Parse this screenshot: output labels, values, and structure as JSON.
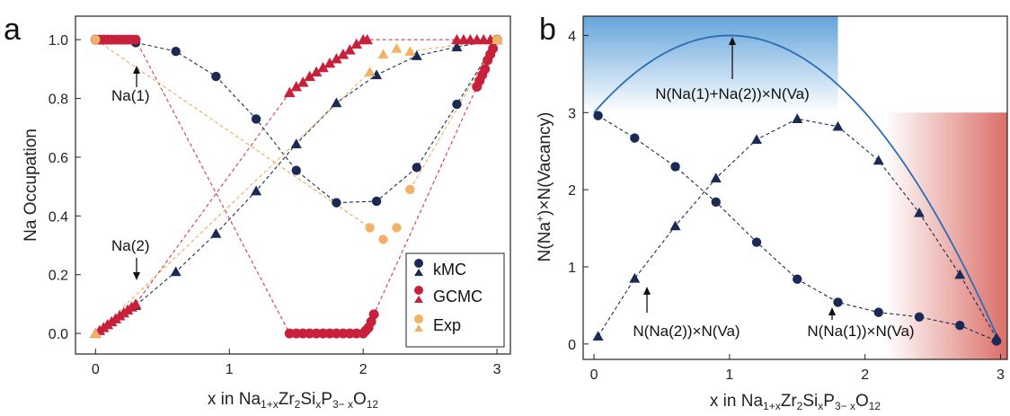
{
  "colors": {
    "kmc": "#1b2a55",
    "gcmc": "#c8203a",
    "exp": "#f2b266",
    "blue_line": "#2a6db5",
    "blue_fill": "#5b9fd9",
    "red_fill": "#d9675f",
    "kmc_dash": "#1b2a55",
    "gcmc_dash": "#d23a4e",
    "exp_dash": "#f0a95a"
  },
  "chart_data": [
    {
      "type": "scatter",
      "panel": "a",
      "xlabel": "x in Na1+xZr2SixP3−xO12",
      "ylabel": "Na Occupation",
      "xlim": [
        -0.15,
        3.1
      ],
      "ylim": [
        -0.07,
        1.08
      ],
      "xticks": [
        0,
        1,
        2,
        3
      ],
      "yticks": [
        0.0,
        0.2,
        0.4,
        0.6,
        0.8,
        1.0
      ],
      "ytick_labels": [
        "0.0",
        "0.2",
        "0.4",
        "0.6",
        "0.8",
        "1.0"
      ],
      "legend": {
        "placement": "bottom-right",
        "entries": [
          "kMC",
          "GCMC",
          "Exp"
        ]
      },
      "annotations": [
        {
          "text": "Na(1)",
          "x": 0.3,
          "y": 0.99
        },
        {
          "text": "Na(2)",
          "x": 0.3,
          "y": 0.11
        }
      ],
      "series": [
        {
          "name": "kMC",
          "site": "Na(1)",
          "marker": "circle",
          "x": [
            0.3,
            0.6,
            0.9,
            1.2,
            1.5,
            1.8,
            2.1,
            2.4,
            2.7,
            3.0
          ],
          "y": [
            0.99,
            0.96,
            0.875,
            0.73,
            0.555,
            0.445,
            0.45,
            0.565,
            0.78,
            1.0
          ]
        },
        {
          "name": "kMC",
          "site": "Na(2)",
          "marker": "triangle",
          "x": [
            0.3,
            0.6,
            0.9,
            1.2,
            1.5,
            1.8,
            2.1,
            2.4,
            2.7,
            3.0
          ],
          "y": [
            0.095,
            0.21,
            0.34,
            0.485,
            0.645,
            0.785,
            0.88,
            0.945,
            0.975,
            1.0
          ]
        },
        {
          "name": "GCMC",
          "site": "Na(1)",
          "marker": "circle",
          "x": [
            0.0,
            0.03,
            0.06,
            0.09,
            0.12,
            0.15,
            0.18,
            0.21,
            0.24,
            0.27,
            0.3,
            1.45,
            1.5,
            1.55,
            1.6,
            1.65,
            1.7,
            1.75,
            1.8,
            1.85,
            1.9,
            1.95,
            2.0,
            2.02,
            2.04,
            2.06,
            2.08,
            2.85,
            2.87,
            2.89,
            2.91,
            2.93,
            2.95,
            2.97,
            3.0
          ],
          "y": [
            1.0,
            1.0,
            1.0,
            1.0,
            1.0,
            1.0,
            1.0,
            1.0,
            1.0,
            1.0,
            1.0,
            0.0,
            0.0,
            0.0,
            0.0,
            0.0,
            0.0,
            0.0,
            0.0,
            0.0,
            0.0,
            0.0,
            0.0,
            0.01,
            0.02,
            0.04,
            0.065,
            0.84,
            0.86,
            0.88,
            0.9,
            0.93,
            0.95,
            0.97,
            1.0
          ]
        },
        {
          "name": "GCMC",
          "site": "Na(2)",
          "marker": "triangle",
          "x": [
            0.0,
            0.03,
            0.06,
            0.09,
            0.12,
            0.15,
            0.18,
            0.21,
            0.24,
            0.27,
            0.3,
            1.45,
            1.5,
            1.55,
            1.6,
            1.65,
            1.7,
            1.75,
            1.8,
            1.85,
            1.9,
            1.95,
            2.0,
            2.03,
            2.7,
            2.75,
            2.8,
            2.85,
            2.9,
            2.95,
            3.0
          ],
          "y": [
            0.0,
            0.01,
            0.02,
            0.03,
            0.04,
            0.05,
            0.06,
            0.07,
            0.08,
            0.09,
            0.1,
            0.82,
            0.84,
            0.855,
            0.875,
            0.89,
            0.905,
            0.92,
            0.935,
            0.95,
            0.965,
            0.985,
            1.0,
            1.0,
            1.0,
            1.0,
            1.0,
            1.0,
            1.0,
            1.0,
            1.0
          ]
        },
        {
          "name": "Exp",
          "site": "Na(1)",
          "marker": "circle",
          "x": [
            0.0,
            2.05,
            2.15,
            2.25,
            2.35,
            3.0
          ],
          "y": [
            1.0,
            0.36,
            0.32,
            0.36,
            0.49,
            1.0
          ]
        },
        {
          "name": "Exp",
          "site": "Na(2)",
          "marker": "triangle",
          "x": [
            0.0,
            2.05,
            2.15,
            2.25,
            2.35,
            3.0
          ],
          "y": [
            0.0,
            0.89,
            0.95,
            0.97,
            0.96,
            1.0
          ]
        }
      ]
    },
    {
      "type": "line",
      "panel": "b",
      "xlabel": "x in Na1+xZr2SixP3−xO12",
      "ylabel": "N(Na⁺)×N(Vacancy)",
      "xlim": [
        -0.08,
        3.05
      ],
      "ylim": [
        -0.2,
        4.25
      ],
      "xticks": [
        0,
        1,
        2,
        3
      ],
      "yticks": [
        0,
        1,
        2,
        3,
        4
      ],
      "annotations": [
        {
          "text": "N(Na(1)+Na(2))×N(Va)",
          "x": 1.0,
          "y": 4.0
        },
        {
          "text": "N(Na(2))×N(Va)",
          "x": 0.38,
          "y": 0.85
        },
        {
          "text": "N(Na(1))×N(Va)",
          "x": 1.7,
          "y": 0.45
        }
      ],
      "series": [
        {
          "name": "N(Na(1)+Na(2))×N(Va)",
          "marker": "none",
          "x": [
            0.0,
            0.25,
            0.5,
            0.75,
            1.0,
            1.25,
            1.5,
            1.75,
            2.0,
            2.25,
            2.5,
            2.75,
            3.0
          ],
          "y": [
            3.0,
            3.4375,
            3.75,
            3.9375,
            4.0,
            3.9375,
            3.75,
            3.4375,
            3.0,
            2.4375,
            1.75,
            0.9375,
            0.0
          ]
        },
        {
          "name": "N(Na(1))×N(Va)",
          "marker": "circle",
          "x": [
            0.03,
            0.3,
            0.6,
            0.9,
            1.2,
            1.5,
            1.8,
            2.1,
            2.4,
            2.7,
            2.97
          ],
          "y": [
            2.96,
            2.67,
            2.3,
            1.84,
            1.32,
            0.84,
            0.54,
            0.41,
            0.35,
            0.24,
            0.04
          ]
        },
        {
          "name": "N(Na(2))×N(Va)",
          "marker": "triangle",
          "x": [
            0.03,
            0.3,
            0.6,
            0.9,
            1.2,
            1.5,
            1.8,
            2.1,
            2.4,
            2.7,
            2.97
          ],
          "y": [
            0.1,
            0.85,
            1.53,
            2.15,
            2.65,
            2.92,
            2.82,
            2.38,
            1.7,
            0.9,
            0.08
          ]
        }
      ],
      "shaded_regions": [
        {
          "color": "blue",
          "x": [
            -0.08,
            1.8
          ],
          "y": [
            3.0,
            4.25
          ]
        },
        {
          "color": "red",
          "x": [
            2.15,
            3.05
          ],
          "y": [
            -0.2,
            3.0
          ]
        }
      ]
    }
  ],
  "labels": {
    "panel_a": "a",
    "panel_b": "b",
    "a_xlabel_pre": "x in Na",
    "a_xlabel_s1": "1+x",
    "a_xlabel_m1": "Zr",
    "a_xlabel_s2": "2",
    "a_xlabel_m2": "Si",
    "a_xlabel_s3": "x",
    "a_xlabel_m3": "P",
    "a_xlabel_s4": "3− x",
    "a_xlabel_m4": "O",
    "a_xlabel_s5": "12",
    "a_ylabel": "Na Occupation",
    "b_ylabel_1": "N(Na",
    "b_ylabel_sup": "+",
    "b_ylabel_2": ")×N(Vacancy)",
    "anno_na1": "Na(1)",
    "anno_na2": "Na(2)",
    "anno_total": "N(Na(1)+Na(2))×N(Va)",
    "anno_na2va": "N(Na(2))×N(Va)",
    "anno_na1va": "N(Na(1))×N(Va)",
    "legend_kmc": "kMC",
    "legend_gcmc": "GCMC",
    "legend_exp": "Exp"
  }
}
